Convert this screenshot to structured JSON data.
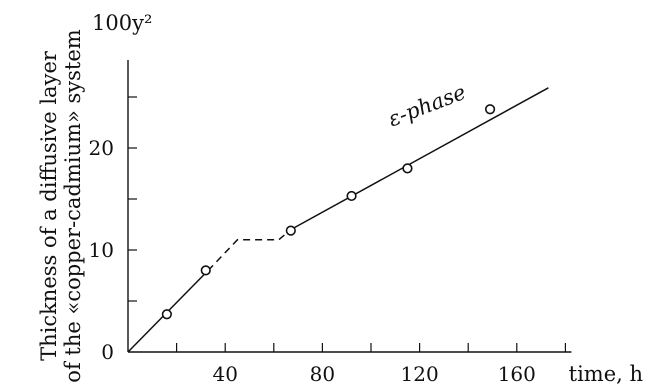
{
  "chart_data": {
    "type": "line",
    "title": "",
    "xlabel": "time, h",
    "ylabel_lines": [
      "Thickness of a diffusive layer",
      "of the «copper-cadmium» system"
    ],
    "y_unit": "100y²",
    "xlim": [
      0,
      180
    ],
    "ylim": [
      0,
      29
    ],
    "x_ticks": [
      0,
      20,
      40,
      60,
      80,
      100,
      120,
      140,
      160,
      180
    ],
    "x_tick_labels": [
      {
        "value": 40,
        "label": "40"
      },
      {
        "value": 80,
        "label": "80"
      },
      {
        "value": 120,
        "label": "120"
      },
      {
        "value": 160,
        "label": "160"
      }
    ],
    "y_ticks": [
      0,
      5,
      10,
      15,
      20,
      25
    ],
    "y_tick_labels": [
      {
        "value": 0,
        "label": "0"
      },
      {
        "value": 10,
        "label": "10"
      },
      {
        "value": 20,
        "label": "20"
      }
    ],
    "segments": [
      {
        "style": "solid",
        "points": [
          [
            0,
            0
          ],
          [
            33,
            8
          ]
        ]
      },
      {
        "style": "dashed",
        "points": [
          [
            33,
            8
          ],
          [
            45,
            11
          ],
          [
            62,
            11
          ],
          [
            67,
            12
          ]
        ]
      },
      {
        "style": "solid",
        "points": [
          [
            67,
            12
          ],
          [
            173,
            25.9
          ]
        ]
      }
    ],
    "points": [
      {
        "x": 16,
        "y": 3.7
      },
      {
        "x": 32,
        "y": 8.0
      },
      {
        "x": 67,
        "y": 11.9
      },
      {
        "x": 92,
        "y": 15.3
      },
      {
        "x": 115,
        "y": 18.0
      },
      {
        "x": 149,
        "y": 23.8
      }
    ],
    "series_annotation": {
      "text": "ε-phase",
      "x": 120,
      "y": 21.5
    }
  }
}
